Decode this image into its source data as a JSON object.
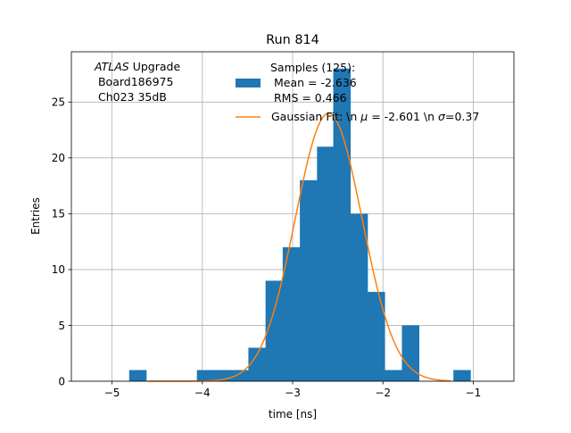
{
  "chart_data": {
    "type": "histogram",
    "title": "Run 814",
    "xlabel": "time [ns]",
    "ylabel": "Entries",
    "xlim": [
      -5.45,
      -0.55
    ],
    "ylim": [
      0,
      29.5
    ],
    "grid": true,
    "xticks": [
      -5,
      -4,
      -3,
      -2,
      -1
    ],
    "xtick_labels": [
      "−5",
      "−4",
      "−3",
      "−2",
      "−1"
    ],
    "yticks": [
      0,
      5,
      10,
      15,
      20,
      25
    ],
    "ytick_labels": [
      "0",
      "5",
      "10",
      "15",
      "20",
      "25"
    ],
    "annotation": {
      "line1_italic": "ATLAS",
      "line1_rest": " Upgrade",
      "line2": " Board186975",
      "line3": " Ch023 35dB"
    },
    "histogram": {
      "name": "Samples (125):",
      "color": "#1f77b4",
      "bins": [
        {
          "x0": -4.81,
          "x1": -4.62,
          "count": 1
        },
        {
          "x0": -4.62,
          "x1": -4.43,
          "count": 0
        },
        {
          "x0": -4.43,
          "x1": -4.24,
          "count": 0
        },
        {
          "x0": -4.24,
          "x1": -4.06,
          "count": 0
        },
        {
          "x0": -4.06,
          "x1": -3.87,
          "count": 1
        },
        {
          "x0": -3.87,
          "x1": -3.68,
          "count": 1
        },
        {
          "x0": -3.68,
          "x1": -3.49,
          "count": 1
        },
        {
          "x0": -3.49,
          "x1": -3.3,
          "count": 3
        },
        {
          "x0": -3.3,
          "x1": -3.11,
          "count": 9
        },
        {
          "x0": -3.11,
          "x1": -2.92,
          "count": 12
        },
        {
          "x0": -2.92,
          "x1": -2.73,
          "count": 18
        },
        {
          "x0": -2.73,
          "x1": -2.55,
          "count": 21
        },
        {
          "x0": -2.55,
          "x1": -2.36,
          "count": 28
        },
        {
          "x0": -2.36,
          "x1": -2.17,
          "count": 15
        },
        {
          "x0": -2.17,
          "x1": -1.98,
          "count": 8
        },
        {
          "x0": -1.98,
          "x1": -1.79,
          "count": 1
        },
        {
          "x0": -1.79,
          "x1": -1.6,
          "count": 5
        },
        {
          "x0": -1.6,
          "x1": -1.41,
          "count": 0
        },
        {
          "x0": -1.41,
          "x1": -1.22,
          "count": 0
        },
        {
          "x0": -1.22,
          "x1": -1.03,
          "count": 1
        }
      ]
    },
    "fit": {
      "name_prefix": "Gaussian Fit: \\n ",
      "mu_symbol": "μ",
      "mu_text": " = -2.601 \\n ",
      "sigma_symbol": "σ",
      "sigma_text": "=0.37",
      "color": "#ff7f0e",
      "amplitude": 24,
      "mu": -2.601,
      "sigma": 0.37,
      "x_range": [
        -4.6,
        -1.25
      ]
    },
    "legend": {
      "location": "upper-right",
      "samples_line1": "Samples (125):",
      "samples_line2": " Mean = -2.636",
      "samples_line3": " RMS = 0.466"
    }
  }
}
